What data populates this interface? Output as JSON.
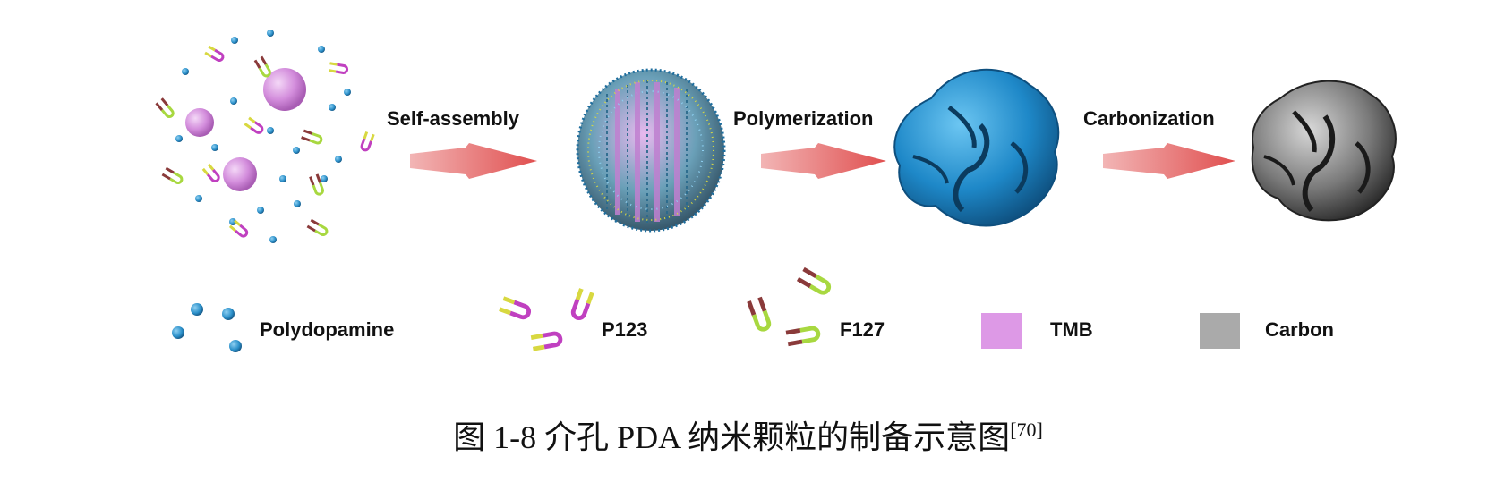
{
  "steps": [
    {
      "label": "Self-assembly"
    },
    {
      "label": "Polymerization"
    },
    {
      "label": "Carbonization"
    }
  ],
  "legend": [
    {
      "label": "Polydopamine",
      "icon": "polydopamine-spheres-icon",
      "color": "#2a8fc9"
    },
    {
      "label": "P123",
      "icon": "p123-surfactant-icon",
      "color": "#c040c0"
    },
    {
      "label": "F127",
      "icon": "f127-surfactant-icon",
      "color": "#8a3a3a"
    },
    {
      "label": "TMB",
      "icon": "tmb-square-icon",
      "color": "#dd99e6"
    },
    {
      "label": "Carbon",
      "icon": "carbon-square-icon",
      "color": "#aaaaaa"
    }
  ],
  "caption": {
    "text": "图 1-8  介孔 PDA 纳米颗粒的制备示意图",
    "ref": "[70]"
  },
  "colors": {
    "arrow": "#e06868",
    "polymer": "#1e88c8",
    "carbon": "#5a5a5a",
    "tmb": "#d98de0"
  }
}
